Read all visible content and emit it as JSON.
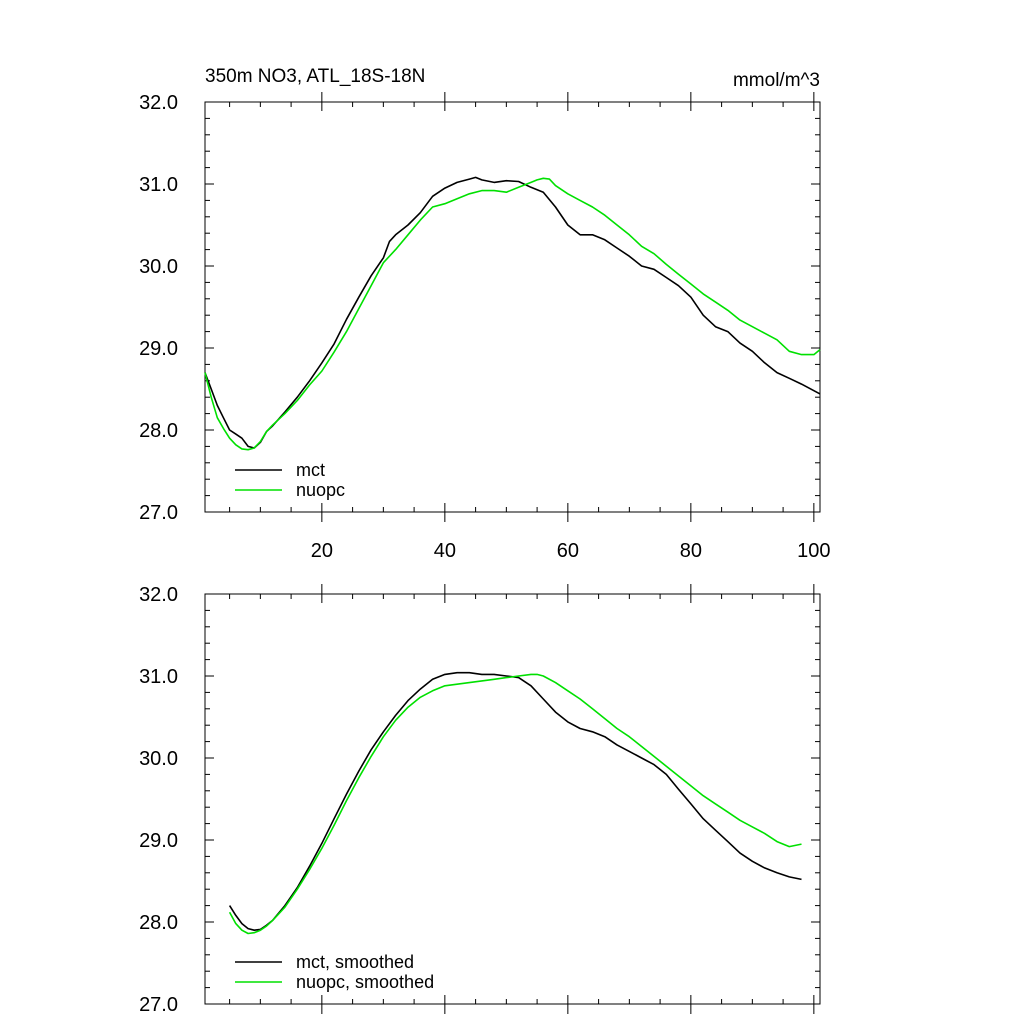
{
  "colors": {
    "mct": "#000000",
    "nuopc": "#00e000",
    "axis": "#000000",
    "background": "#ffffff"
  },
  "chart_data": [
    {
      "type": "line",
      "title": "350m NO3, ATL_18S-18N",
      "units": "mmol/m^3",
      "xlim": [
        1,
        101
      ],
      "ylim": [
        27.0,
        32.0
      ],
      "xticks": [
        20,
        40,
        60,
        80,
        100
      ],
      "xtick_labels": [
        "20",
        "40",
        "60",
        "80",
        "100"
      ],
      "yticks": [
        27.0,
        28.0,
        29.0,
        30.0,
        31.0,
        32.0
      ],
      "ytick_labels": [
        "27.0",
        "28.0",
        "29.0",
        "30.0",
        "31.0",
        "32.0"
      ],
      "legend_position": "bottom-left",
      "series": [
        {
          "name": "mct",
          "color": "#000000",
          "x": [
            1,
            2,
            3,
            4,
            5,
            6,
            7,
            8,
            9,
            10,
            11,
            12,
            14,
            16,
            18,
            20,
            22,
            24,
            26,
            28,
            30,
            31,
            32,
            34,
            36,
            38,
            40,
            42,
            44,
            45,
            46,
            48,
            50,
            52,
            54,
            56,
            58,
            60,
            62,
            64,
            66,
            68,
            70,
            72,
            74,
            76,
            78,
            80,
            82,
            84,
            86,
            88,
            90,
            92,
            94,
            96,
            98,
            101
          ],
          "y": [
            28.7,
            28.5,
            28.3,
            28.15,
            28.0,
            27.95,
            27.9,
            27.8,
            27.78,
            27.85,
            27.98,
            28.05,
            28.22,
            28.4,
            28.6,
            28.82,
            29.05,
            29.35,
            29.62,
            29.88,
            30.1,
            30.3,
            30.38,
            30.5,
            30.65,
            30.85,
            30.95,
            31.02,
            31.06,
            31.08,
            31.05,
            31.02,
            31.04,
            31.03,
            30.96,
            30.9,
            30.72,
            30.5,
            30.38,
            30.38,
            30.32,
            30.22,
            30.12,
            30.0,
            29.96,
            29.86,
            29.76,
            29.62,
            29.4,
            29.26,
            29.2,
            29.06,
            28.96,
            28.82,
            28.7,
            28.63,
            28.56,
            28.44
          ]
        },
        {
          "name": "nuopc",
          "color": "#00e000",
          "x": [
            1,
            2,
            3,
            4,
            5,
            6,
            7,
            8,
            9,
            10,
            11,
            12,
            14,
            16,
            18,
            20,
            22,
            24,
            26,
            28,
            30,
            32,
            34,
            36,
            38,
            40,
            42,
            44,
            46,
            48,
            50,
            52,
            54,
            55,
            56,
            57,
            58,
            60,
            62,
            64,
            66,
            68,
            70,
            72,
            74,
            76,
            78,
            80,
            82,
            84,
            86,
            88,
            90,
            92,
            94,
            96,
            98,
            100,
            101
          ],
          "y": [
            28.7,
            28.4,
            28.15,
            28.02,
            27.9,
            27.82,
            27.77,
            27.76,
            27.78,
            27.86,
            27.98,
            28.06,
            28.2,
            28.36,
            28.55,
            28.72,
            28.95,
            29.2,
            29.48,
            29.76,
            30.04,
            30.2,
            30.38,
            30.56,
            30.72,
            30.76,
            30.82,
            30.88,
            30.92,
            30.92,
            30.9,
            30.96,
            31.02,
            31.05,
            31.07,
            31.06,
            30.98,
            30.88,
            30.8,
            30.72,
            30.62,
            30.5,
            30.38,
            30.24,
            30.15,
            30.02,
            29.9,
            29.78,
            29.66,
            29.56,
            29.46,
            29.34,
            29.26,
            29.18,
            29.1,
            28.96,
            28.92,
            28.92,
            28.98
          ]
        }
      ]
    },
    {
      "type": "line",
      "title": "",
      "xlim": [
        1,
        101
      ],
      "ylim": [
        27.0,
        32.0
      ],
      "xticks": [
        20,
        40,
        60,
        80,
        100
      ],
      "yticks": [
        27.0,
        28.0,
        29.0,
        30.0,
        31.0,
        32.0
      ],
      "ytick_labels": [
        "27.0",
        "28.0",
        "29.0",
        "30.0",
        "31.0",
        "32.0"
      ],
      "legend_position": "bottom-left",
      "series": [
        {
          "name": "mct, smoothed",
          "color": "#000000",
          "x": [
            5,
            6,
            7,
            8,
            9,
            10,
            11,
            12,
            14,
            16,
            18,
            20,
            22,
            24,
            26,
            28,
            30,
            32,
            34,
            36,
            38,
            40,
            42,
            44,
            46,
            48,
            50,
            52,
            54,
            56,
            58,
            60,
            62,
            64,
            66,
            68,
            70,
            72,
            74,
            76,
            78,
            80,
            82,
            84,
            86,
            88,
            90,
            92,
            94,
            96,
            98
          ],
          "y": [
            28.2,
            28.08,
            27.98,
            27.92,
            27.9,
            27.91,
            27.96,
            28.02,
            28.2,
            28.42,
            28.68,
            28.96,
            29.26,
            29.56,
            29.84,
            30.1,
            30.32,
            30.52,
            30.7,
            30.84,
            30.96,
            31.02,
            31.04,
            31.04,
            31.02,
            31.02,
            31.0,
            30.98,
            30.88,
            30.72,
            30.56,
            30.44,
            30.36,
            30.32,
            30.26,
            30.16,
            30.08,
            30.0,
            29.92,
            29.8,
            29.62,
            29.44,
            29.26,
            29.12,
            28.98,
            28.84,
            28.74,
            28.66,
            28.6,
            28.55,
            28.52
          ]
        },
        {
          "name": "nuopc, smoothed",
          "color": "#00e000",
          "x": [
            5,
            6,
            7,
            8,
            9,
            10,
            11,
            12,
            14,
            16,
            18,
            20,
            22,
            24,
            26,
            28,
            30,
            32,
            34,
            36,
            38,
            40,
            42,
            44,
            46,
            48,
            50,
            52,
            54,
            55,
            56,
            58,
            60,
            62,
            64,
            66,
            68,
            70,
            72,
            74,
            76,
            78,
            80,
            82,
            84,
            86,
            88,
            90,
            92,
            94,
            96,
            98
          ],
          "y": [
            28.12,
            27.98,
            27.9,
            27.86,
            27.87,
            27.9,
            27.95,
            28.02,
            28.18,
            28.4,
            28.64,
            28.9,
            29.18,
            29.48,
            29.76,
            30.02,
            30.26,
            30.46,
            30.62,
            30.74,
            30.82,
            30.88,
            30.9,
            30.92,
            30.94,
            30.96,
            30.98,
            31.0,
            31.02,
            31.02,
            31.0,
            30.92,
            30.82,
            30.72,
            30.6,
            30.48,
            30.36,
            30.26,
            30.14,
            30.02,
            29.9,
            29.78,
            29.66,
            29.54,
            29.44,
            29.34,
            29.24,
            29.16,
            29.08,
            28.98,
            28.92,
            28.95
          ]
        }
      ]
    }
  ]
}
